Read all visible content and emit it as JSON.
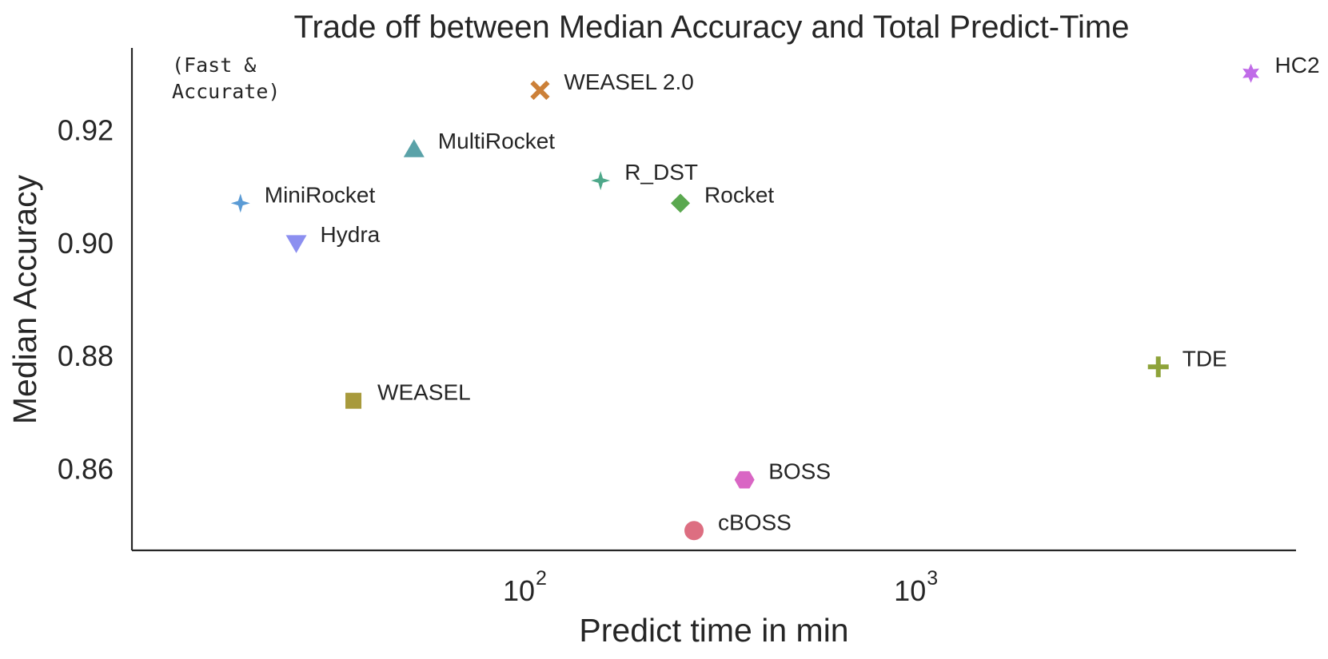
{
  "chart_data": {
    "type": "scatter",
    "title": "Trade off between Median Accuracy and Total Predict-Time",
    "xlabel": "Predict time in min",
    "ylabel": "Median Accuracy",
    "x_scale": "log",
    "xlim": [
      9.5,
      9000
    ],
    "ylim": [
      0.8455,
      0.9345
    ],
    "x_ticks": [
      {
        "value": 100,
        "base": "10",
        "exp": "2"
      },
      {
        "value": 1000,
        "base": "10",
        "exp": "3"
      }
    ],
    "y_ticks": [
      "0.86",
      "0.88",
      "0.90",
      "0.92"
    ],
    "grid": false,
    "annotation": [
      "(Fast &",
      "Accurate)"
    ],
    "points": [
      {
        "name": "MiniRocket",
        "x": 18,
        "y": 0.907,
        "marker": "star4",
        "color": "#5b9bd5"
      },
      {
        "name": "Hydra",
        "x": 25,
        "y": 0.9,
        "marker": "triangle-down",
        "color": "#8c8ff0"
      },
      {
        "name": "MultiRocket",
        "x": 50,
        "y": 0.9165,
        "marker": "triangle-up",
        "color": "#5aa2a8"
      },
      {
        "name": "WEASEL 2.0",
        "x": 105,
        "y": 0.927,
        "marker": "x",
        "color": "#cc8038"
      },
      {
        "name": "R_DST",
        "x": 150,
        "y": 0.911,
        "marker": "star4",
        "color": "#4ea88a"
      },
      {
        "name": "Rocket",
        "x": 240,
        "y": 0.907,
        "marker": "diamond",
        "color": "#5aa84f"
      },
      {
        "name": "WEASEL",
        "x": 35,
        "y": 0.872,
        "marker": "square",
        "color": "#a89a3c"
      },
      {
        "name": "BOSS",
        "x": 350,
        "y": 0.858,
        "marker": "hexagon",
        "color": "#d966c4"
      },
      {
        "name": "cBOSS",
        "x": 260,
        "y": 0.849,
        "marker": "circle",
        "color": "#dd6e81"
      },
      {
        "name": "TDE",
        "x": 4000,
        "y": 0.878,
        "marker": "plus",
        "color": "#8ea33a"
      },
      {
        "name": "HC2",
        "x": 6900,
        "y": 0.93,
        "marker": "star6",
        "color": "#c06be8"
      }
    ]
  }
}
